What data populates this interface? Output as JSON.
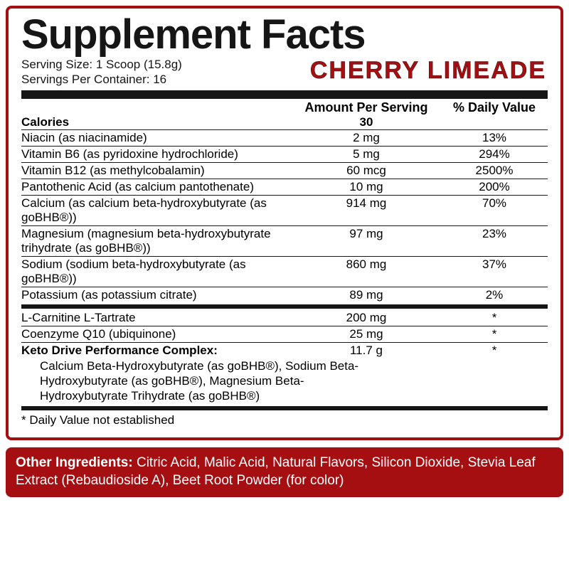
{
  "colors": {
    "accent": "#a50f11",
    "text": "#161616",
    "panel_bg": "#ffffff",
    "other_text": "#ffffff"
  },
  "title": "Supplement Facts",
  "flavor": "CHERRY LIMEADE",
  "serving_size": "Serving Size: 1 Scoop (15.8g)",
  "servings_per_container": "Servings Per Container: 16",
  "header": {
    "amount": "Amount Per Serving",
    "dv": "% Daily Value"
  },
  "calories": {
    "label": "Calories",
    "value": "30"
  },
  "rows1": [
    {
      "name": "Niacin (as niacinamide)",
      "amt": "2 mg",
      "dv": "13%"
    },
    {
      "name": "Vitamin B6 (as pyridoxine hydrochloride)",
      "amt": "5 mg",
      "dv": "294%"
    },
    {
      "name": "Vitamin B12 (as methylcobalamin)",
      "amt": "60 mcg",
      "dv": "2500%"
    },
    {
      "name": "Pantothenic Acid (as calcium pantothenate)",
      "amt": "10 mg",
      "dv": "200%"
    },
    {
      "name": "Calcium (as calcium beta-hydroxybutyrate (as goBHB®))",
      "amt": "914 mg",
      "dv": "70%"
    },
    {
      "name": "Magnesium (magnesium beta-hydroxybutyrate trihydrate (as goBHB®))",
      "amt": "97 mg",
      "dv": "23%"
    },
    {
      "name": "Sodium (sodium beta-hydroxybutyrate (as goBHB®))",
      "amt": "860 mg",
      "dv": "37%"
    },
    {
      "name": "Potassium (as potassium citrate)",
      "amt": "89 mg",
      "dv": "2%"
    }
  ],
  "rows2": [
    {
      "name": "L-Carnitine L-Tartrate",
      "amt": "200 mg",
      "dv": "*"
    },
    {
      "name": "Coenzyme Q10 (ubiquinone)",
      "amt": "25 mg",
      "dv": "*"
    }
  ],
  "complex": {
    "name": "Keto Drive Performance Complex:",
    "amt": "11.7 g",
    "dv": "*",
    "detail": "Calcium Beta-Hydroxybutyrate (as goBHB®), Sodium Beta-Hydroxybutyrate (as goBHB®), Magnesium Beta-Hydroxybutyrate Trihydrate (as goBHB®)"
  },
  "footnote": "* Daily Value not established",
  "other_ingredients": {
    "label": "Other Ingredients:",
    "text": " Citric Acid, Malic Acid, Natural Flavors, Silicon Dioxide, Stevia Leaf Extract (Rebaudioside A), Beet Root Powder (for color)"
  }
}
